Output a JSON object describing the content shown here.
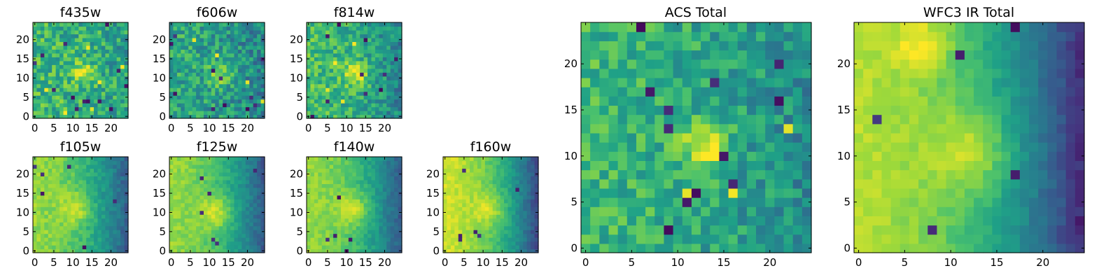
{
  "figure": {
    "background": "#ffffff"
  },
  "colormap": {
    "name": "viridis",
    "stops": [
      "#440154",
      "#46327e",
      "#365c8d",
      "#277f8e",
      "#1fa187",
      "#4ac16d",
      "#a0da39",
      "#fde725"
    ]
  },
  "chart_data": [
    {
      "type": "heatmap",
      "title": "f435w",
      "xlim": [
        0,
        24
      ],
      "ylim": [
        0,
        24
      ],
      "grid": false,
      "xticks": [
        "0",
        "5",
        "10",
        "15",
        "20"
      ],
      "yticks": [
        "0",
        "5",
        "10",
        "15",
        "20"
      ],
      "field": {
        "seed": 11,
        "base": 0.62,
        "peak": [
          12.5,
          11.5
        ],
        "peak_amp": 0.3,
        "peak_sigma": 2.2,
        "left_amp": 0.05,
        "right_amp": -0.05,
        "noise": 0.38,
        "dark_spots": 14,
        "bright_spots": 6
      }
    },
    {
      "type": "heatmap",
      "title": "f606w",
      "xlim": [
        0,
        24
      ],
      "ylim": [
        0,
        24
      ],
      "grid": false,
      "xticks": [
        "0",
        "5",
        "10",
        "15",
        "20"
      ],
      "yticks": [
        "0",
        "5",
        "10",
        "15",
        "20"
      ],
      "field": {
        "seed": 23,
        "base": 0.55,
        "peak": [
          13,
          11
        ],
        "peak_amp": 0.3,
        "peak_sigma": 2.2,
        "left_amp": 0.05,
        "right_amp": -0.1,
        "noise": 0.36,
        "dark_spots": 12,
        "bright_spots": 4
      }
    },
    {
      "type": "heatmap",
      "title": "f814w",
      "xlim": [
        0,
        24
      ],
      "ylim": [
        0,
        24
      ],
      "grid": false,
      "xticks": [
        "0",
        "5",
        "10",
        "15",
        "20"
      ],
      "yticks": [
        "0",
        "5",
        "10",
        "15",
        "20"
      ],
      "field": {
        "seed": 37,
        "base": 0.6,
        "peak": [
          12.5,
          11
        ],
        "peak_amp": 0.35,
        "peak_sigma": 2.3,
        "left_amp": 0.1,
        "right_amp": -0.15,
        "noise": 0.32,
        "dark_spots": 10,
        "bright_spots": 4
      }
    },
    {
      "type": "heatmap",
      "title": "f105w",
      "xlim": [
        0,
        24
      ],
      "ylim": [
        0,
        24
      ],
      "grid": false,
      "xticks": [
        "0",
        "5",
        "10",
        "15",
        "20"
      ],
      "yticks": [
        "0",
        "5",
        "10",
        "15",
        "20"
      ],
      "field": {
        "seed": 41,
        "base": 0.72,
        "peak": [
          11,
          11
        ],
        "peak_amp": 0.2,
        "peak_sigma": 3,
        "left_amp": 0.12,
        "right_amp": -0.42,
        "noise": 0.14,
        "dark_spots": 6,
        "bright_spots": 0
      }
    },
    {
      "type": "heatmap",
      "title": "f125w",
      "xlim": [
        0,
        24
      ],
      "ylim": [
        0,
        24
      ],
      "grid": false,
      "xticks": [
        "0",
        "5",
        "10",
        "15",
        "20"
      ],
      "yticks": [
        "0",
        "5",
        "10",
        "15",
        "20"
      ],
      "field": {
        "seed": 53,
        "base": 0.74,
        "peak": [
          12,
          10
        ],
        "peak_amp": 0.22,
        "peak_sigma": 3,
        "left_amp": 0.1,
        "right_amp": -0.45,
        "noise": 0.12,
        "dark_spots": 6,
        "bright_spots": 0
      }
    },
    {
      "type": "heatmap",
      "title": "f140w",
      "xlim": [
        0,
        24
      ],
      "ylim": [
        0,
        24
      ],
      "grid": false,
      "xticks": [
        "0",
        "5",
        "10",
        "15",
        "20"
      ],
      "yticks": [
        "0",
        "5",
        "10",
        "15",
        "20"
      ],
      "field": {
        "seed": 67,
        "base": 0.74,
        "peak": [
          12,
          11
        ],
        "peak_amp": 0.22,
        "peak_sigma": 3,
        "left_amp": 0.1,
        "right_amp": -0.45,
        "noise": 0.12,
        "dark_spots": 5,
        "bright_spots": 0
      }
    },
    {
      "type": "heatmap",
      "title": "f160w",
      "xlim": [
        0,
        24
      ],
      "ylim": [
        0,
        24
      ],
      "grid": false,
      "xticks": [
        "0",
        "5",
        "10",
        "15",
        "20"
      ],
      "yticks": [
        "0",
        "5",
        "10",
        "15",
        "20"
      ],
      "field": {
        "seed": 79,
        "base": 0.78,
        "peak": [
          12,
          11
        ],
        "peak_amp": 0.18,
        "peak_sigma": 3,
        "left_amp": 0.15,
        "right_amp": -0.55,
        "noise": 0.11,
        "dark_spots": 6,
        "bright_spots": 0
      }
    },
    {
      "type": "heatmap",
      "title": "ACS Total",
      "xlim": [
        0,
        24
      ],
      "ylim": [
        0,
        24
      ],
      "grid": false,
      "xticks": [
        "0",
        "5",
        "10",
        "15",
        "20"
      ],
      "yticks": [
        "0",
        "5",
        "10",
        "15",
        "20"
      ],
      "field": {
        "seed": 97,
        "base": 0.6,
        "peak": [
          13,
          11
        ],
        "peak_amp": 0.4,
        "peak_sigma": 1.8,
        "left_amp": 0.06,
        "right_amp": -0.12,
        "noise": 0.3,
        "dark_spots": 12,
        "bright_spots": 3
      }
    },
    {
      "type": "heatmap",
      "title": "WFC3 IR Total",
      "xlim": [
        0,
        24
      ],
      "ylim": [
        0,
        24
      ],
      "grid": false,
      "xticks": [
        "0",
        "5",
        "10",
        "15",
        "20"
      ],
      "yticks": [
        "0",
        "5",
        "10",
        "15",
        "20"
      ],
      "field": {
        "seed": 113,
        "base": 0.74,
        "peak": [
          12.5,
          10.5
        ],
        "peak_amp": 0.22,
        "peak_sigma": 3.2,
        "left_amp": 0.15,
        "right_amp": -0.6,
        "noise": 0.09,
        "dark_spots": 6,
        "bright_spots": 0,
        "blob2": [
          7,
          22
        ],
        "blob2_amp": 0.2
      }
    }
  ]
}
